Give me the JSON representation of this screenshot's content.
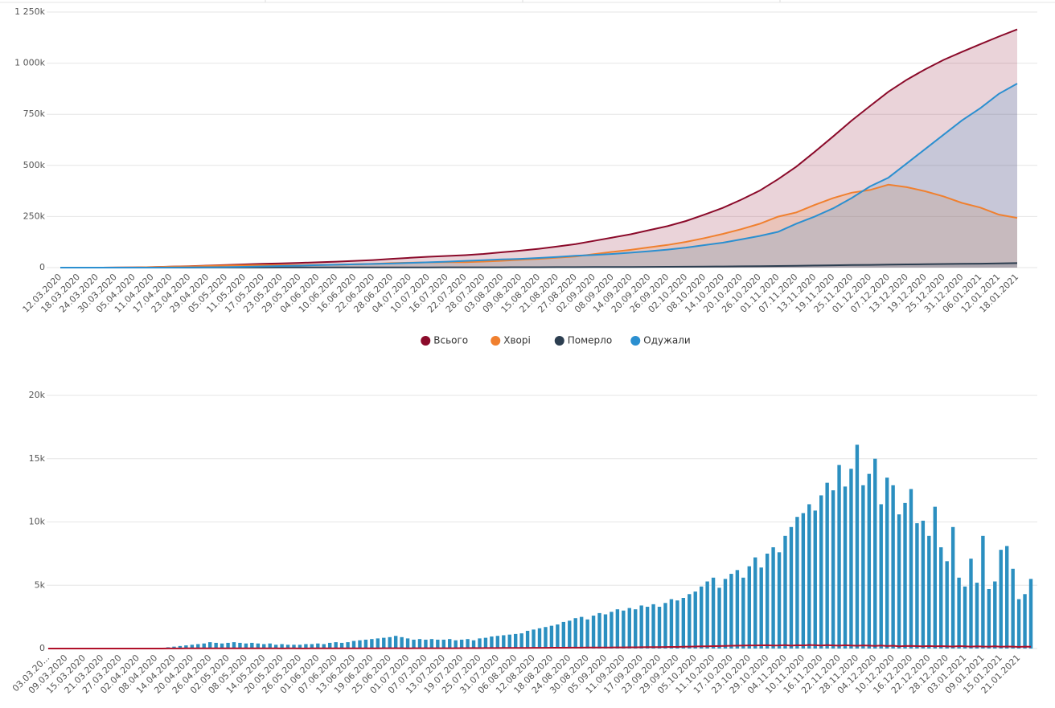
{
  "chart_data": [
    {
      "type": "area",
      "categories": [
        "12.03.2020",
        "18.03.2020",
        "24.03.2020",
        "30.03.2020",
        "05.04.2020",
        "11.04.2020",
        "17.04.2020",
        "23.04.2020",
        "29.04.2020",
        "05.05.2020",
        "11.05.2020",
        "17.05.2020",
        "23.05.2020",
        "29.05.2020",
        "04.06.2020",
        "10.06.2020",
        "16.06.2020",
        "22.06.2020",
        "28.06.2020",
        "04.07.2020",
        "10.07.2020",
        "16.07.2020",
        "22.07.2020",
        "28.07.2020",
        "03.08.2020",
        "09.08.2020",
        "15.08.2020",
        "21.08.2020",
        "27.08.2020",
        "02.09.2020",
        "08.09.2020",
        "14.09.2020",
        "20.09.2020",
        "26.09.2020",
        "02.10.2020",
        "08.10.2020",
        "14.10.2020",
        "20.10.2020",
        "26.10.2020",
        "01.11.2020",
        "07.11.2020",
        "13.11.2020",
        "19.11.2020",
        "25.11.2020",
        "01.12.2020",
        "07.12.2020",
        "13.12.2020",
        "19.12.2020",
        "25.12.2020",
        "31.12.2020",
        "06.01.2021",
        "12.01.2021",
        "18.01.2021"
      ],
      "series": [
        {
          "name": "Всього",
          "color": "#8b0a2a",
          "values": [
            0,
            0,
            100,
            500,
            1300,
            2500,
            4700,
            7000,
            10000,
            13000,
            15600,
            18600,
            21000,
            23000,
            26000,
            29000,
            33000,
            37000,
            43000,
            48000,
            53000,
            57000,
            61000,
            67000,
            75000,
            83000,
            92000,
            103000,
            115000,
            131000,
            147000,
            163000,
            183000,
            203000,
            228000,
            259000,
            292000,
            332000,
            376000,
            432000,
            494000,
            567000,
            642000,
            719000,
            790000,
            860000,
            919000,
            970000,
            1016000,
            1055000,
            1093000,
            1130000,
            1165000
          ]
        },
        {
          "name": "Хворі",
          "color": "#f0802f",
          "values": [
            0,
            0,
            100,
            490,
            1250,
            2360,
            4280,
            6010,
            8230,
            10170,
            11210,
            12060,
            12380,
            12320,
            13240,
            14140,
            16040,
            17930,
            21870,
            23790,
            25680,
            26550,
            26440,
            29300,
            33240,
            38150,
            42950,
            48750,
            54500,
            66210,
            76950,
            86700,
            99360,
            111000,
            125630,
            144150,
            164550,
            187900,
            214200,
            249300,
            270200,
            306900,
            340500,
            366400,
            379600,
            405500,
            393400,
            373500,
            348400,
            316600,
            293700,
            259400,
            243100
          ]
        },
        {
          "name": "Померло",
          "color": "#2c3e50",
          "values": [
            0,
            0,
            0,
            10,
            40,
            70,
            120,
            190,
            270,
            330,
            390,
            540,
            620,
            680,
            760,
            860,
            960,
            1070,
            1130,
            1210,
            1320,
            1450,
            1560,
            1700,
            1760,
            1850,
            2050,
            2250,
            2500,
            2790,
            3050,
            3300,
            3640,
            4000,
            4370,
            4850,
            5450,
            6100,
            6800,
            7700,
            8800,
            10100,
            11500,
            12600,
            13400,
            14500,
            15600,
            16500,
            17600,
            18400,
            19300,
            20600,
            21900
          ]
        },
        {
          "name": "Одужали",
          "color": "#2b8fd0",
          "values": [
            0,
            0,
            0,
            0,
            10,
            70,
            300,
            800,
            1500,
            2500,
            4000,
            6000,
            8000,
            10000,
            12000,
            14000,
            16000,
            18000,
            20000,
            23000,
            26000,
            29000,
            33000,
            36000,
            40000,
            43000,
            47000,
            52000,
            58000,
            62000,
            67000,
            73000,
            80000,
            88000,
            98000,
            110000,
            122000,
            138000,
            155000,
            175000,
            215000,
            250000,
            290000,
            340000,
            397000,
            440000,
            510000,
            580000,
            650000,
            720000,
            780000,
            850000,
            900000
          ]
        }
      ],
      "ylim": [
        0,
        1250000
      ],
      "yticks": [
        0,
        {
          "value": 250000,
          "label": "250k"
        },
        {
          "value": 500000,
          "label": "500k"
        },
        {
          "value": 750000,
          "label": "750k"
        },
        {
          "value": 1000000,
          "label": "1 000k"
        },
        {
          "value": 1250000,
          "label": "1 250k"
        }
      ],
      "grid": true,
      "legend": "bottom"
    },
    {
      "type": "bar",
      "categories": [
        "03.03.20...",
        null,
        null,
        "09.03.2020",
        null,
        null,
        "15.03.2020",
        null,
        null,
        "21.03.2020",
        null,
        null,
        "27.03.2020",
        null,
        null,
        "02.04.2020",
        null,
        null,
        "08.04.2020",
        null,
        null,
        "14.04.2020",
        null,
        null,
        "20.04.2020",
        null,
        null,
        "26.04.2020",
        null,
        null,
        "02.05.2020",
        null,
        null,
        "08.05.2020",
        null,
        null,
        "14.05.2020",
        null,
        null,
        "20.05.2020",
        null,
        null,
        "26.05.2020",
        null,
        null,
        "01.06.2020",
        null,
        null,
        "07.06.2020",
        null,
        null,
        "13.06.2020",
        null,
        null,
        "19.06.2020",
        null,
        null,
        "25.06.2020",
        null,
        null,
        "01.07.2020",
        null,
        null,
        "07.07.2020",
        null,
        null,
        "13.07.2020",
        null,
        null,
        "19.07.2020",
        null,
        null,
        "25.07.2020",
        null,
        null,
        "31.07.2020",
        null,
        null,
        "06.08.2020",
        null,
        null,
        "12.08.2020",
        null,
        null,
        "18.08.2020",
        null,
        null,
        "24.08.2020",
        null,
        null,
        "30.08.2020",
        null,
        null,
        "05.09.2020",
        null,
        null,
        "11.09.2020",
        null,
        null,
        "17.09.2020",
        null,
        null,
        "23.09.2020",
        null,
        null,
        "29.09.2020",
        null,
        null,
        "05.10.2020",
        null,
        null,
        "11.10.2020",
        null,
        null,
        "17.10.2020",
        null,
        null,
        "23.10.2020",
        null,
        null,
        "29.10.2020",
        null,
        null,
        "04.11.2020",
        null,
        null,
        "10.11.2020",
        null,
        null,
        "16.11.2020",
        null,
        null,
        "22.11.2020",
        null,
        null,
        "28.11.2020",
        null,
        null,
        "04.12.2020",
        null,
        null,
        "10.12.2020",
        null,
        null,
        "16.12.2020",
        null,
        null,
        "22.12.2020",
        null,
        null,
        "28.12.2020",
        null,
        null,
        "03.01.2021",
        null,
        null,
        "09.01.2021",
        null,
        null,
        "15.01.2021",
        null,
        null,
        "21.01.2021",
        null,
        null
      ],
      "series": [
        {
          "type": "bar",
          "color": "#2b8fc0",
          "values": [
            0,
            0,
            0,
            0,
            0,
            0,
            0,
            0,
            0,
            0,
            0,
            0,
            0,
            0,
            0,
            0,
            0,
            10,
            20,
            50,
            100,
            150,
            200,
            250,
            300,
            350,
            400,
            500,
            450,
            400,
            450,
            500,
            450,
            400,
            450,
            400,
            350,
            400,
            300,
            350,
            300,
            300,
            300,
            350,
            350,
            400,
            350,
            450,
            500,
            450,
            500,
            600,
            650,
            700,
            750,
            800,
            850,
            900,
            1000,
            900,
            800,
            700,
            750,
            700,
            750,
            700,
            700,
            750,
            650,
            700,
            750,
            650,
            800,
            850,
            950,
            1000,
            1050,
            1100,
            1150,
            1200,
            1400,
            1500,
            1600,
            1700,
            1800,
            1900,
            2100,
            2200,
            2400,
            2500,
            2300,
            2600,
            2800,
            2700,
            2900,
            3100,
            3000,
            3200,
            3100,
            3400,
            3300,
            3500,
            3300,
            3600,
            3900,
            3800,
            4000,
            4300,
            4500,
            4900,
            5300,
            5600,
            4800,
            5500,
            5900,
            6200,
            5600,
            6500,
            7200,
            6400,
            7500,
            8000,
            7600,
            8900,
            9600,
            10400,
            10700,
            11400,
            10900,
            12100,
            13100,
            12500,
            14500,
            12800,
            14200,
            16100,
            12900,
            13800,
            15000,
            11400,
            13500,
            12900,
            10600,
            11500,
            12600,
            9900,
            10100,
            8900,
            11200,
            8000,
            6900,
            9600,
            5600,
            4900,
            7100,
            5200,
            8900,
            4700,
            5300,
            7800,
            8100,
            6300,
            3900,
            4300,
            5500
          ]
        },
        {
          "type": "line",
          "color": "#b0102a",
          "values": [
            0,
            0,
            0,
            0,
            0,
            0,
            0,
            0,
            0,
            0,
            0,
            0,
            0,
            0,
            0,
            0,
            0,
            1,
            2,
            3,
            5,
            6,
            8,
            10,
            12,
            15,
            14,
            16,
            18,
            15,
            14,
            12,
            16,
            13,
            15,
            12,
            11,
            10,
            12,
            9,
            11,
            10,
            8,
            9,
            10,
            12,
            11,
            13,
            14,
            15,
            17,
            18,
            20,
            19,
            22,
            21,
            24,
            25,
            27,
            24,
            22,
            24,
            26,
            23,
            25,
            27,
            24,
            26,
            28,
            30,
            32,
            35,
            33,
            37,
            40,
            38,
            42,
            45,
            48,
            50,
            52,
            55,
            58,
            60,
            62,
            65,
            63,
            68,
            70,
            72,
            75,
            78,
            80,
            82,
            85,
            88,
            90,
            95,
            98,
            100,
            105,
            110,
            115,
            120,
            125,
            130,
            140,
            150,
            160,
            170,
            180,
            190,
            200,
            210,
            220,
            230,
            240,
            250,
            245,
            255,
            260,
            240,
            250,
            270,
            230,
            260,
            250,
            280,
            260,
            240,
            270,
            250,
            230,
            260,
            240,
            220,
            250,
            230,
            210,
            240,
            200,
            220,
            180,
            200,
            210,
            190,
            180,
            200,
            170,
            190,
            180,
            160,
            190,
            170,
            150,
            180,
            160,
            150,
            170,
            140,
            160,
            150,
            130,
            150,
            140
          ]
        }
      ],
      "ylim": [
        0,
        20000
      ],
      "yticks": [
        0,
        {
          "value": 5000,
          "label": "5k"
        },
        {
          "value": 10000,
          "label": "10k"
        },
        {
          "value": 15000,
          "label": "15k"
        },
        {
          "value": 20000,
          "label": "20k"
        }
      ],
      "grid": true
    }
  ]
}
